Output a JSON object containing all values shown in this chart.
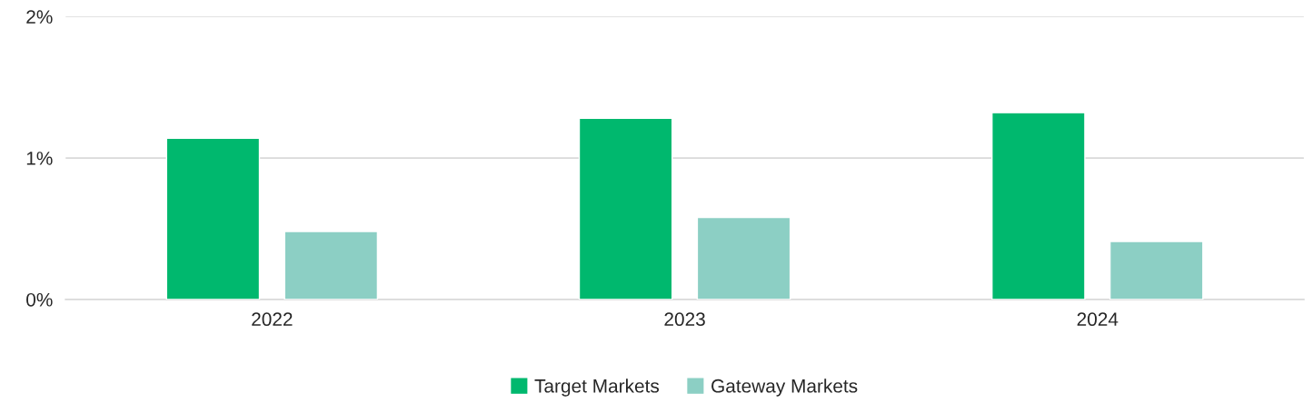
{
  "chart_data": {
    "type": "bar",
    "categories": [
      "2022",
      "2023",
      "2024"
    ],
    "series": [
      {
        "name": "Target Markets",
        "color": "#00b86e",
        "values": [
          1.14,
          1.28,
          1.32
        ]
      },
      {
        "name": "Gateway Markets",
        "color": "#8ccfc4",
        "values": [
          0.48,
          0.58,
          0.41
        ]
      }
    ],
    "ylim": [
      0,
      2
    ],
    "yticks": [
      {
        "value": 0,
        "label": "0%"
      },
      {
        "value": 1,
        "label": "1%"
      },
      {
        "value": 2,
        "label": "2%"
      }
    ],
    "grid": "y",
    "legend": "bottom"
  }
}
